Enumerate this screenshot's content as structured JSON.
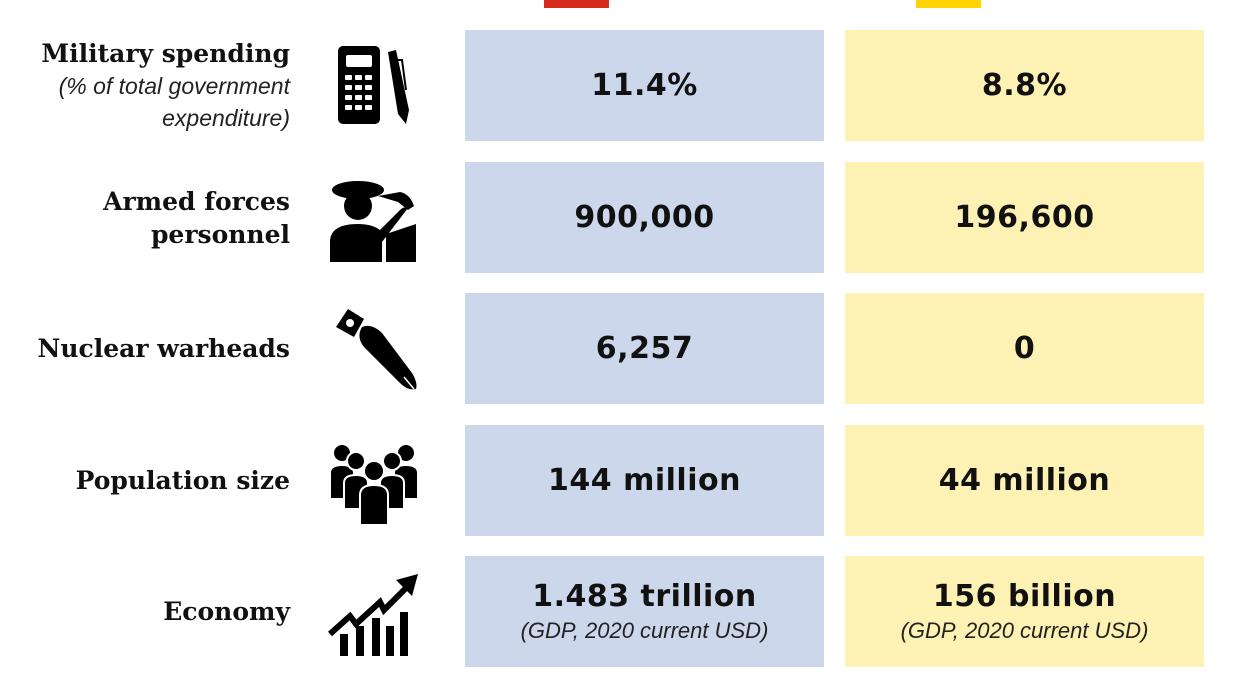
{
  "colors": {
    "left_flag": "#d62b1e",
    "right_flag": "#ffd400",
    "left_cell": "#ccd7ec",
    "right_cell": "#fdf1b3"
  },
  "rows": [
    {
      "label": "Military spending",
      "sublabel": "(% of total government expenditure)",
      "icon": "calculator-pen-icon",
      "left": "11.4%",
      "right": "8.8%"
    },
    {
      "label": "Armed forces personnel",
      "icon": "saluting-soldier-icon",
      "left": "900,000",
      "right": "196,600"
    },
    {
      "label": "Nuclear warheads",
      "icon": "bomb-icon",
      "left": "6,257",
      "right": "0"
    },
    {
      "label": "Population size",
      "icon": "crowd-icon",
      "left": "144 million",
      "right": "44 million"
    },
    {
      "label": "Economy",
      "icon": "growth-chart-icon",
      "left": "1.483 trillion",
      "left_note": "(GDP, 2020 current USD)",
      "right": "156 billion",
      "right_note": "(GDP, 2020 current USD)"
    }
  ]
}
